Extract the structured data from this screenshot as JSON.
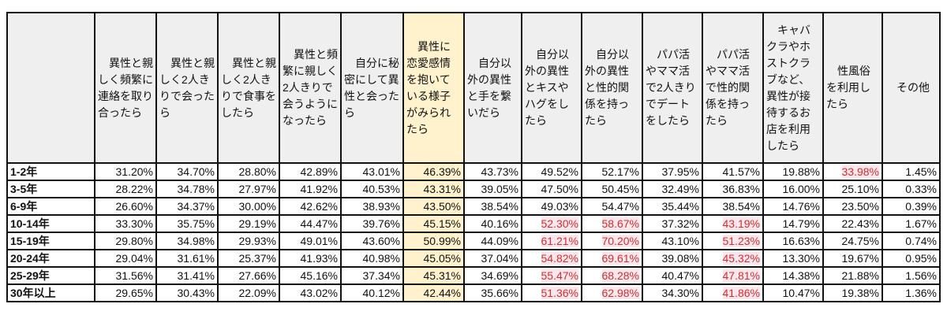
{
  "table": {
    "corner": "",
    "highlight_column": 6,
    "headers": [
      "異性と親しく頻繁に連絡を取り合ったら",
      "異性と親しく2人きりで会ったら",
      "異性と親しく2人きりで食事をしたら",
      "異性と頻繁に親しく2人きりで会うようになったら",
      "自分に秘密にして異性と会ったら",
      "異性に恋愛感情を抱いている様子がみられたら",
      "自分以外の異性と手を繋いだら",
      "自分以外の異性とキスやハグをしたら",
      "自分以外の異性と性的関係を持ったら",
      "パパ活やママ活で2人きりでデートをしたら",
      "パパ活やママ活で性的関係を持ったら",
      "キャバクラやホストクラブなど、異性が接待するお店を利用したら",
      "性風俗を利用したら",
      "その他"
    ],
    "rows": [
      {
        "label": "1-2年",
        "values": [
          "31.20%",
          "34.70%",
          "28.80%",
          "42.89%",
          "43.01%",
          "46.39%",
          "43.73%",
          "49.52%",
          "52.17%",
          "37.95%",
          "41.57%",
          "19.88%",
          "33.98%",
          "1.45%"
        ],
        "red": [
          12
        ]
      },
      {
        "label": "3-5年",
        "values": [
          "28.22%",
          "34.78%",
          "27.97%",
          "41.92%",
          "40.53%",
          "43.31%",
          "39.05%",
          "47.50%",
          "50.45%",
          "32.49%",
          "36.83%",
          "16.00%",
          "25.10%",
          "0.33%"
        ],
        "red": []
      },
      {
        "label": "6-9年",
        "values": [
          "26.60%",
          "34.37%",
          "30.00%",
          "42.62%",
          "38.93%",
          "43.50%",
          "38.54%",
          "49.03%",
          "54.47%",
          "35.44%",
          "38.54%",
          "14.76%",
          "23.50%",
          "0.39%"
        ],
        "red": []
      },
      {
        "label": "10-14年",
        "values": [
          "33.30%",
          "35.75%",
          "29.19%",
          "44.47%",
          "39.76%",
          "45.15%",
          "40.16%",
          "52.30%",
          "58.67%",
          "37.32%",
          "43.19%",
          "14.79%",
          "22.43%",
          "1.67%"
        ],
        "red": [
          7,
          8,
          10
        ]
      },
      {
        "label": "15-19年",
        "values": [
          "29.80%",
          "34.98%",
          "29.93%",
          "49.01%",
          "43.60%",
          "50.99%",
          "44.09%",
          "61.21%",
          "70.20%",
          "43.10%",
          "51.23%",
          "16.63%",
          "24.75%",
          "0.74%"
        ],
        "red": [
          7,
          8,
          10
        ]
      },
      {
        "label": "20-24年",
        "values": [
          "29.04%",
          "31.61%",
          "25.37%",
          "41.93%",
          "40.98%",
          "45.05%",
          "37.04%",
          "54.82%",
          "69.61%",
          "39.08%",
          "45.32%",
          "13.30%",
          "19.67%",
          "0.95%"
        ],
        "red": [
          7,
          8,
          10
        ]
      },
      {
        "label": "25-29年",
        "values": [
          "31.56%",
          "31.41%",
          "27.66%",
          "45.16%",
          "37.34%",
          "45.31%",
          "34.69%",
          "55.47%",
          "68.28%",
          "40.47%",
          "47.81%",
          "14.38%",
          "21.88%",
          "1.56%"
        ],
        "red": [
          7,
          8,
          10
        ]
      },
      {
        "label": "30年以上",
        "values": [
          "29.65%",
          "30.43%",
          "22.09%",
          "43.02%",
          "40.12%",
          "42.44%",
          "35.66%",
          "51.36%",
          "62.98%",
          "34.30%",
          "41.86%",
          "10.47%",
          "19.38%",
          "1.36%"
        ],
        "red": [
          7,
          8,
          10
        ]
      }
    ]
  },
  "colors": {
    "header_bg": "#efefef",
    "highlight_bg": "#fff2cc",
    "red_text": "#d22f2f",
    "red_bg": "#fde6ec"
  }
}
